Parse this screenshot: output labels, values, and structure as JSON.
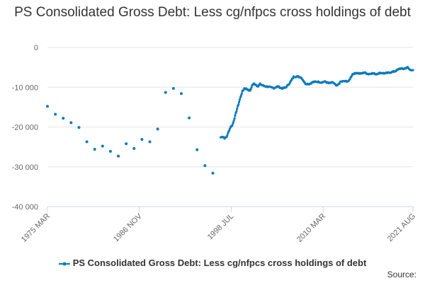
{
  "chart_data": {
    "type": "line",
    "title": "PS Consolidated Gross Debt: Less cg/nfpcs cross holdings of debt",
    "xlabel": "",
    "ylabel": "",
    "x_range": [
      "1975-03",
      "2021-08"
    ],
    "ylim": [
      -40000,
      0
    ],
    "y_ticks": [
      0,
      -10000,
      -20000,
      -30000,
      -40000
    ],
    "y_tick_labels": [
      "0",
      "-10 000",
      "-20 000",
      "-30 000",
      "-40 000"
    ],
    "x_ticks": [
      "1975-03",
      "1986-11",
      "1998-07",
      "2010-03",
      "2021-08"
    ],
    "x_tick_labels": [
      "1975 MAR",
      "1986 NOV",
      "1998 JUL",
      "2010 MAR",
      "2021 AUG"
    ],
    "grid": "horizontal",
    "legend_position": "bottom",
    "series": [
      {
        "name": "PS Consolidated Gross Debt: Less cg/nfpcs cross holdings of debt",
        "color": "#0a7bbd",
        "annual_points": [
          [
            "1975-03",
            -14800
          ],
          [
            "1976-03",
            -16800
          ],
          [
            "1977-03",
            -17800
          ],
          [
            "1978-03",
            -18900
          ],
          [
            "1979-03",
            -20100
          ],
          [
            "1980-03",
            -23700
          ],
          [
            "1981-03",
            -25600
          ],
          [
            "1982-03",
            -24800
          ],
          [
            "1983-03",
            -26100
          ],
          [
            "1984-03",
            -27300
          ],
          [
            "1985-03",
            -24200
          ],
          [
            "1986-03",
            -25400
          ],
          [
            "1987-03",
            -23100
          ],
          [
            "1988-03",
            -23700
          ],
          [
            "1989-03",
            -20500
          ],
          [
            "1990-03",
            -11300
          ],
          [
            "1991-03",
            -10300
          ],
          [
            "1992-03",
            -11600
          ],
          [
            "1993-03",
            -17700
          ],
          [
            "1994-03",
            -25700
          ],
          [
            "1995-03",
            -29700
          ],
          [
            "1996-03",
            -31600
          ]
        ],
        "monthly_points": [
          [
            "1997-03",
            -22600
          ],
          [
            "1997-06",
            -22400
          ],
          [
            "1997-09",
            -22800
          ],
          [
            "1997-12",
            -22500
          ],
          [
            "1998-03",
            -21200
          ],
          [
            "1998-06",
            -20000
          ],
          [
            "1998-09",
            -19500
          ],
          [
            "1998-12",
            -17800
          ],
          [
            "1999-03",
            -16000
          ],
          [
            "1999-06",
            -14300
          ],
          [
            "1999-09",
            -12600
          ],
          [
            "1999-12",
            -11100
          ],
          [
            "2000-03",
            -10300
          ],
          [
            "2000-06",
            -10400
          ],
          [
            "2000-12",
            -10900
          ],
          [
            "2001-03",
            -9500
          ],
          [
            "2001-06",
            -9100
          ],
          [
            "2001-12",
            -9800
          ],
          [
            "2002-03",
            -9200
          ],
          [
            "2002-09",
            -9700
          ],
          [
            "2003-03",
            -9900
          ],
          [
            "2003-12",
            -10200
          ],
          [
            "2004-06",
            -9800
          ],
          [
            "2004-12",
            -10300
          ],
          [
            "2005-06",
            -10100
          ],
          [
            "2005-12",
            -9000
          ],
          [
            "2006-06",
            -7400
          ],
          [
            "2006-12",
            -7300
          ],
          [
            "2007-06",
            -7600
          ],
          [
            "2007-12",
            -9100
          ],
          [
            "2008-06",
            -9200
          ],
          [
            "2008-12",
            -8700
          ],
          [
            "2009-06",
            -8600
          ],
          [
            "2009-12",
            -8800
          ],
          [
            "2010-06",
            -8600
          ],
          [
            "2010-12",
            -9000
          ],
          [
            "2011-06",
            -8800
          ],
          [
            "2011-12",
            -9700
          ],
          [
            "2012-06",
            -8600
          ],
          [
            "2012-12",
            -8500
          ],
          [
            "2013-06",
            -8500
          ],
          [
            "2013-12",
            -6700
          ],
          [
            "2014-06",
            -6400
          ],
          [
            "2014-12",
            -6600
          ],
          [
            "2015-06",
            -6300
          ],
          [
            "2015-12",
            -6700
          ],
          [
            "2016-06",
            -6500
          ],
          [
            "2016-12",
            -6700
          ],
          [
            "2017-06",
            -6400
          ],
          [
            "2017-12",
            -6500
          ],
          [
            "2018-06",
            -6400
          ],
          [
            "2018-12",
            -6200
          ],
          [
            "2019-06",
            -5900
          ],
          [
            "2019-12",
            -5300
          ],
          [
            "2020-06",
            -5400
          ],
          [
            "2020-12",
            -5000
          ],
          [
            "2021-03",
            -5600
          ],
          [
            "2021-08",
            -5700
          ]
        ]
      }
    ]
  },
  "legend": {
    "label": "PS Consolidated Gross Debt: Less cg/nfpcs cross holdings of debt"
  },
  "source_label": "Source:"
}
